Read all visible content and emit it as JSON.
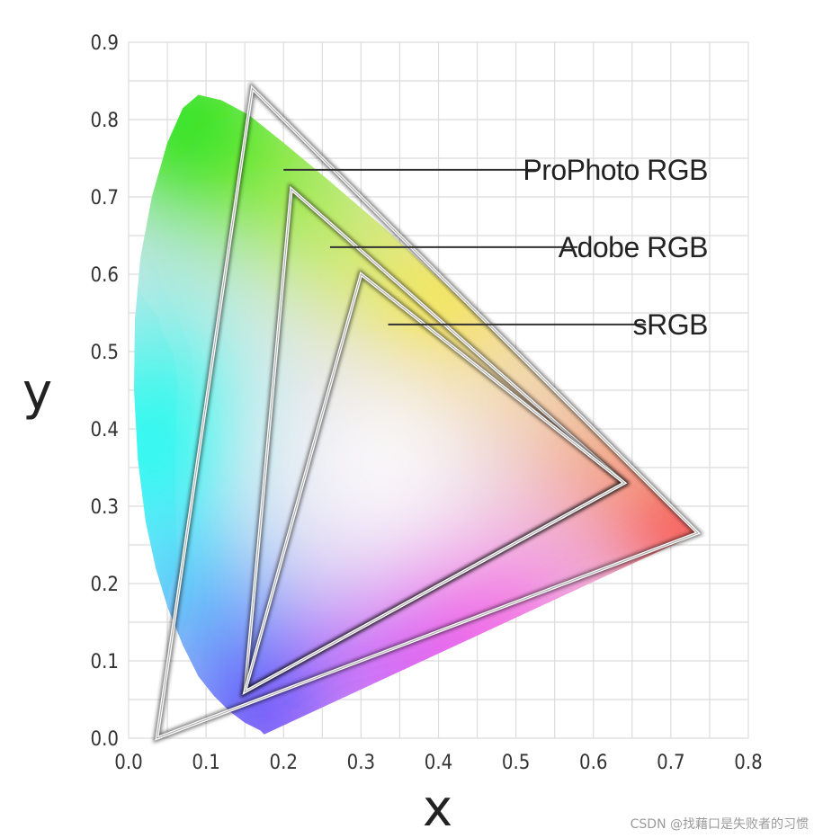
{
  "chart_data": {
    "type": "scatter",
    "title": "",
    "xlabel": "x",
    "ylabel": "y",
    "xlim": [
      0,
      0.8
    ],
    "ylim": [
      0,
      0.9
    ],
    "x_ticks": [
      "0.0",
      "0.1",
      "0.2",
      "0.3",
      "0.4",
      "0.5",
      "0.6",
      "0.7",
      "0.8"
    ],
    "y_ticks": [
      "0.0",
      "0.1",
      "0.2",
      "0.3",
      "0.4",
      "0.5",
      "0.6",
      "0.7",
      "0.8",
      "0.9"
    ],
    "grid": true,
    "spectral_locus": [
      [
        0.175,
        0.005
      ],
      [
        0.17,
        0.01
      ],
      [
        0.15,
        0.02
      ],
      [
        0.13,
        0.035
      ],
      [
        0.11,
        0.055
      ],
      [
        0.09,
        0.08
      ],
      [
        0.07,
        0.12
      ],
      [
        0.05,
        0.17
      ],
      [
        0.035,
        0.22
      ],
      [
        0.022,
        0.28
      ],
      [
        0.012,
        0.36
      ],
      [
        0.007,
        0.45
      ],
      [
        0.008,
        0.54
      ],
      [
        0.015,
        0.62
      ],
      [
        0.03,
        0.7
      ],
      [
        0.05,
        0.77
      ],
      [
        0.07,
        0.815
      ],
      [
        0.09,
        0.832
      ],
      [
        0.12,
        0.825
      ],
      [
        0.155,
        0.806
      ],
      [
        0.2,
        0.77
      ],
      [
        0.26,
        0.72
      ],
      [
        0.33,
        0.66
      ],
      [
        0.4,
        0.595
      ],
      [
        0.48,
        0.52
      ],
      [
        0.56,
        0.44
      ],
      [
        0.63,
        0.37
      ],
      [
        0.69,
        0.31
      ],
      [
        0.735,
        0.265
      ]
    ],
    "gamuts": [
      {
        "name": "ProPhoto RGB",
        "red": [
          0.7347,
          0.2653
        ],
        "green": [
          0.1596,
          0.8404
        ],
        "blue": [
          0.0366,
          0.0001
        ]
      },
      {
        "name": "Adobe RGB",
        "red": [
          0.64,
          0.33
        ],
        "green": [
          0.21,
          0.71
        ],
        "blue": [
          0.15,
          0.06
        ]
      },
      {
        "name": "sRGB",
        "red": [
          0.64,
          0.33
        ],
        "green": [
          0.3,
          0.6
        ],
        "blue": [
          0.15,
          0.06
        ]
      }
    ],
    "annotations": [
      {
        "label": "ProPhoto RGB",
        "from": [
          0.2,
          0.735
        ]
      },
      {
        "label": "Adobe RGB",
        "from": [
          0.26,
          0.635
        ]
      },
      {
        "label": "sRGB",
        "from": [
          0.335,
          0.535
        ]
      }
    ]
  },
  "watermark": "CSDN @找藉口是失败者的习惯"
}
